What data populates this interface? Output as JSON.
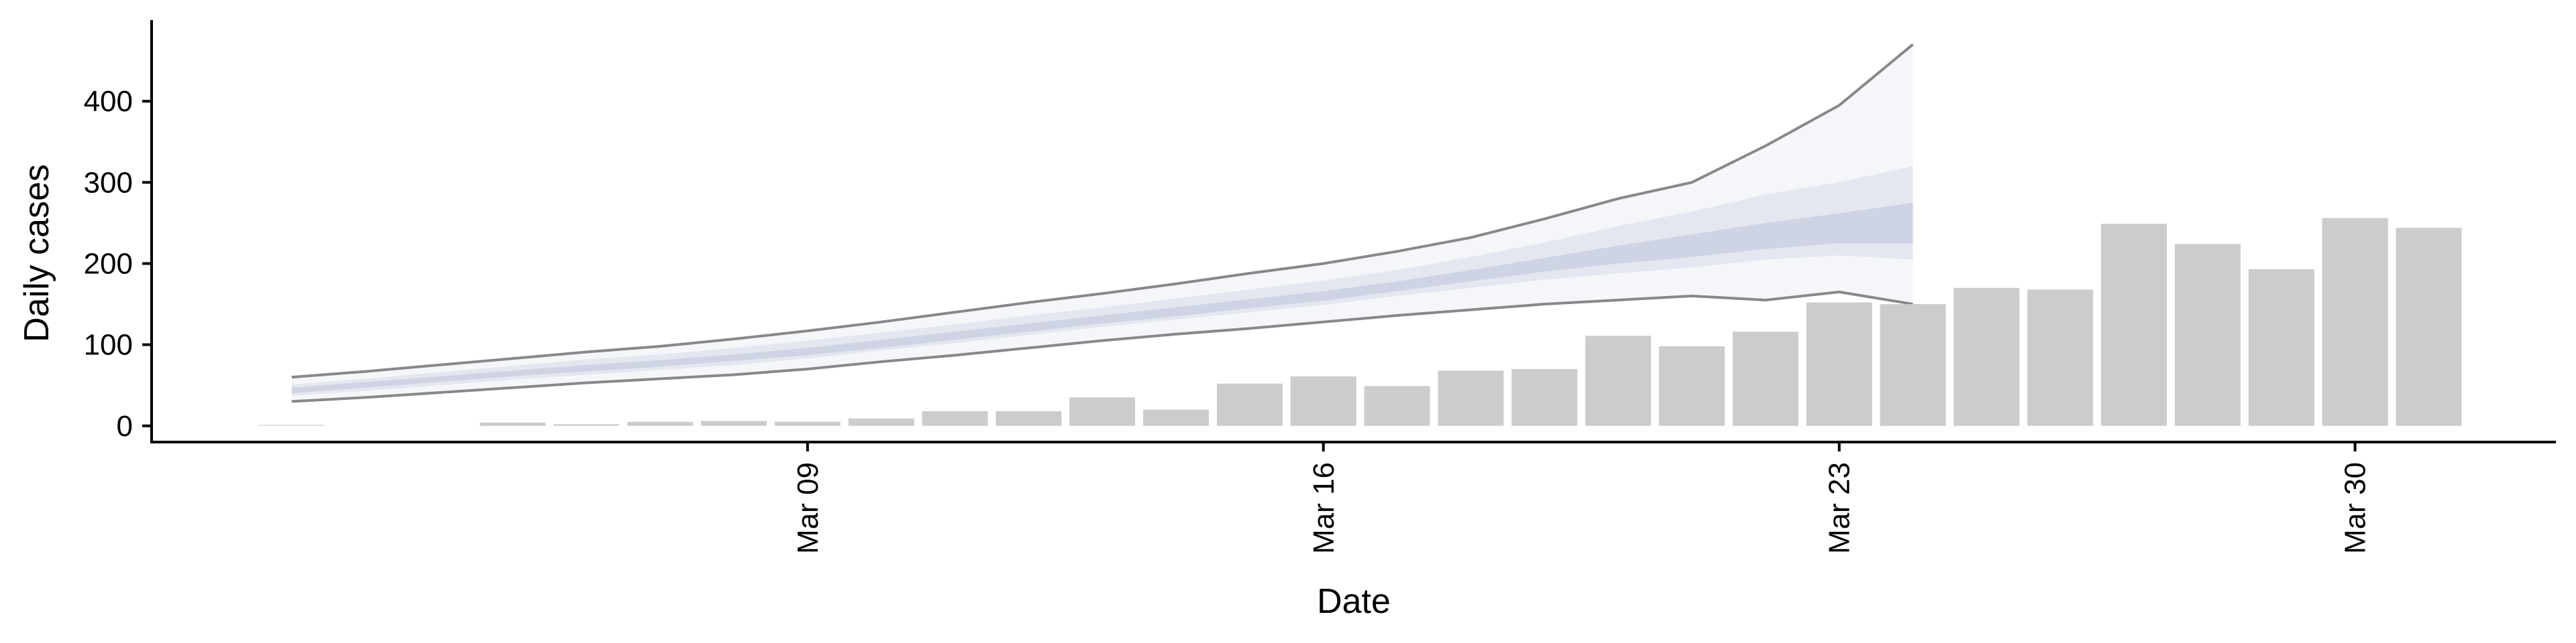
{
  "chart_data": {
    "type": "bar",
    "xlabel": "Date",
    "ylabel": "Daily cases",
    "ylim": [
      -20,
      500
    ],
    "y_ticks": [
      0,
      100,
      200,
      300,
      400
    ],
    "x_ticks": [
      {
        "date": "2020-03-09",
        "label": "Mar 09"
      },
      {
        "date": "2020-03-16",
        "label": "Mar 16"
      },
      {
        "date": "2020-03-23",
        "label": "Mar 23"
      },
      {
        "date": "2020-03-30",
        "label": "Mar 30"
      }
    ],
    "x_range": [
      "2020-03-01",
      "2020-04-04"
    ],
    "grid": false,
    "legend": "none",
    "bars": {
      "color": "#cccccc",
      "dates": [
        "2020-03-02",
        "2020-03-03",
        "2020-03-04",
        "2020-03-05",
        "2020-03-06",
        "2020-03-07",
        "2020-03-08",
        "2020-03-09",
        "2020-03-10",
        "2020-03-11",
        "2020-03-12",
        "2020-03-13",
        "2020-03-14",
        "2020-03-15",
        "2020-03-16",
        "2020-03-17",
        "2020-03-18",
        "2020-03-19",
        "2020-03-20",
        "2020-03-21",
        "2020-03-22",
        "2020-03-23",
        "2020-03-24",
        "2020-03-25",
        "2020-03-26",
        "2020-03-27",
        "2020-03-28",
        "2020-03-29",
        "2020-03-30",
        "2020-03-31",
        "2020-04-01",
        "2020-04-02",
        "2020-04-03"
      ],
      "values": [
        1,
        0,
        0,
        4,
        2,
        5,
        6,
        5,
        9,
        18,
        18,
        35,
        20,
        52,
        61,
        49,
        68,
        70,
        111,
        98,
        116,
        152,
        150,
        170,
        168,
        249,
        224,
        193,
        256,
        244,
        0,
        0,
        0
      ]
    },
    "forecast": {
      "dates": [
        "2020-03-02",
        "2020-03-03",
        "2020-03-04",
        "2020-03-05",
        "2020-03-06",
        "2020-03-07",
        "2020-03-08",
        "2020-03-09",
        "2020-03-10",
        "2020-03-11",
        "2020-03-12",
        "2020-03-13",
        "2020-03-14",
        "2020-03-15",
        "2020-03-16",
        "2020-03-17",
        "2020-03-18",
        "2020-03-19",
        "2020-03-20",
        "2020-03-21",
        "2020-03-22",
        "2020-03-23",
        "2020-03-24"
      ],
      "lower90": [
        30,
        35,
        41,
        47,
        53,
        58,
        63,
        70,
        79,
        87,
        96,
        105,
        113,
        120,
        128,
        136,
        143,
        150,
        155,
        160,
        155,
        165,
        150
      ],
      "upper90": [
        60,
        67,
        75,
        83,
        91,
        98,
        107,
        117,
        128,
        140,
        152,
        163,
        175,
        188,
        200,
        215,
        232,
        255,
        280,
        300,
        345,
        395,
        470
      ],
      "lower50": [
        37,
        43,
        50,
        57,
        63,
        69,
        75,
        83,
        93,
        102,
        112,
        122,
        131,
        140,
        149,
        160,
        170,
        180,
        188,
        195,
        205,
        210,
        205
      ],
      "upper50": [
        51,
        58,
        66,
        74,
        82,
        88,
        96,
        105,
        115,
        125,
        136,
        146,
        157,
        168,
        179,
        192,
        208,
        226,
        246,
        264,
        285,
        300,
        320
      ],
      "lower20": [
        40,
        47,
        54,
        61,
        67,
        73,
        80,
        87,
        96,
        106,
        116,
        126,
        135,
        145,
        154,
        166,
        178,
        190,
        200,
        208,
        218,
        225,
        225
      ],
      "upper20": [
        47,
        54,
        61,
        68,
        75,
        81,
        88,
        96,
        106,
        116,
        126,
        136,
        146,
        156,
        166,
        178,
        192,
        207,
        222,
        236,
        250,
        262,
        275
      ],
      "band_colors": {
        "outer": "#f5f6fa",
        "mid": "#e4e7f0",
        "inner": "#cfd4e4"
      },
      "line_color": "#888888"
    }
  }
}
